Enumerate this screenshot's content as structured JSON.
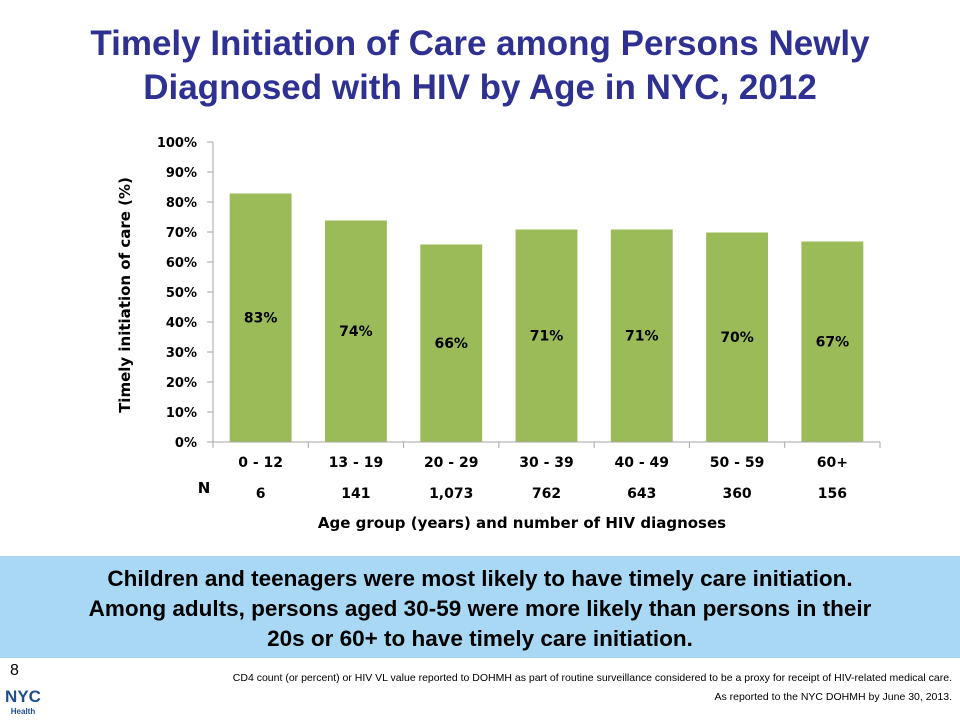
{
  "title_line1": "Timely Initiation of Care among Persons Newly",
  "title_line2": "Diagnosed with HIV by Age in NYC, 2012",
  "chart_data": {
    "type": "bar",
    "categories": [
      "0 - 12",
      "13 - 19",
      "20 - 29",
      "30 - 39",
      "40 - 49",
      "50 - 59",
      "60+"
    ],
    "values": [
      83,
      74,
      66,
      71,
      71,
      70,
      67
    ],
    "data_labels": [
      "83%",
      "74%",
      "66%",
      "71%",
      "71%",
      "70%",
      "67%"
    ],
    "n_label": "N",
    "n_values": [
      "6",
      "141",
      "1,073",
      "762",
      "643",
      "360",
      "156"
    ],
    "ylabel": "Timely initiation of care (%)",
    "xlabel": "Age group (years) and number of HIV diagnoses",
    "ylim": [
      0,
      100
    ],
    "yticks": [
      0,
      10,
      20,
      30,
      40,
      50,
      60,
      70,
      80,
      90,
      100
    ],
    "ytick_labels": [
      "0%",
      "10%",
      "20%",
      "30%",
      "40%",
      "50%",
      "60%",
      "70%",
      "80%",
      "90%",
      "100%"
    ],
    "bar_color": "#9bbb59",
    "bar_edge_color": "#ffffff",
    "grid": false
  },
  "callout": {
    "line1": "Children and teenagers were most likely to have timely care initiation.",
    "line2": "Among adults, persons aged 30-59 were more likely than persons in their",
    "line3": "20s or 60+ to have timely care initiation.",
    "background": "#a8d8f4"
  },
  "page_number": "8",
  "footnote1": "CD4 count (or percent) or HIV VL value reported to DOHMH as part of routine surveillance considered to be a proxy for receipt of HIV-related medical care.",
  "footnote2": "As reported to the NYC DOHMH by June 30, 2013.",
  "logo": {
    "text": "NYC",
    "subtext": "Health",
    "color": "#1e4f91"
  },
  "title_color": "#2e3192"
}
